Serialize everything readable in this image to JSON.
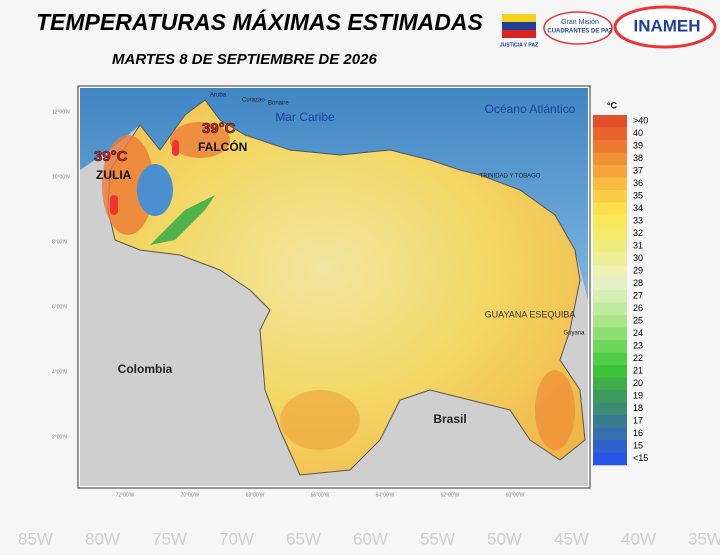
{
  "header": {
    "title": "TEMPERATURAS MÁXIMAS ESTIMADAS",
    "subtitle": "MARTES 8 DE SEPTIEMBRE DE 2026"
  },
  "logos": {
    "flag_caption": "JUSTICIA Y PAZ",
    "mission_line1": "Gran Misión",
    "mission_line2": "CUADRANTES DE PAZ",
    "inameh": "INAMEH"
  },
  "map": {
    "labels": {
      "sea": "Mar Caribe",
      "ocean": "Océano Atlántico",
      "colombia": "Colombia",
      "brasil": "Brasil",
      "esequiba": "GUAYANA ESEQUIBA",
      "trinidad": "TRINIDAD Y TOBAGO",
      "guyana": "Guyana",
      "aruba": "Aruba",
      "curazao": "Curazao",
      "bonaire": "Bonaire"
    },
    "highlights": [
      {
        "temp": "39°C",
        "state": "ZULIA"
      },
      {
        "temp": "39°C",
        "state": "FALCÓN"
      }
    ],
    "lat_labels": [
      "12°00'N",
      "10°00'N",
      "8°00'N",
      "6°00'N",
      "4°00'N",
      "2°00'N"
    ],
    "lon_labels": [
      "72°00'W",
      "70°00'W",
      "68°00'W",
      "66°00'W",
      "64°00'W",
      "62°00'W",
      "60°00'W"
    ]
  },
  "legend": {
    "unit": "°C",
    "items": [
      {
        "label": ">40",
        "color": "#e0502a"
      },
      {
        "label": "40",
        "color": "#e8662e"
      },
      {
        "label": "39",
        "color": "#ee7a32"
      },
      {
        "label": "38",
        "color": "#f29036"
      },
      {
        "label": "37",
        "color": "#f5a53a"
      },
      {
        "label": "36",
        "color": "#f8ba3f"
      },
      {
        "label": "35",
        "color": "#fbce45"
      },
      {
        "label": "34",
        "color": "#fde04c"
      },
      {
        "label": "33",
        "color": "#f8e85a"
      },
      {
        "label": "32",
        "color": "#f3ea6a"
      },
      {
        "label": "31",
        "color": "#efec7e"
      },
      {
        "label": "30",
        "color": "#ecee98"
      },
      {
        "label": "29",
        "color": "#eff0b4"
      },
      {
        "label": "28",
        "color": "#e6f0c6"
      },
      {
        "label": "27",
        "color": "#d6eeb6"
      },
      {
        "label": "26",
        "color": "#c0ea9e"
      },
      {
        "label": "25",
        "color": "#a8e588"
      },
      {
        "label": "24",
        "color": "#8cdf70"
      },
      {
        "label": "23",
        "color": "#6ed75a"
      },
      {
        "label": "22",
        "color": "#52ce46"
      },
      {
        "label": "21",
        "color": "#3ec23a"
      },
      {
        "label": "20",
        "color": "#40ad4a"
      },
      {
        "label": "19",
        "color": "#3e9b5e"
      },
      {
        "label": "18",
        "color": "#3c8b74"
      },
      {
        "label": "17",
        "color": "#397c90"
      },
      {
        "label": "16",
        "color": "#366eae"
      },
      {
        "label": "15",
        "color": "#2f60cc"
      },
      {
        "label": "<15",
        "color": "#2755e8"
      }
    ]
  },
  "background_lon": [
    "85W",
    "80W",
    "75W",
    "70W",
    "65W",
    "60W",
    "55W",
    "50W",
    "45W",
    "40W",
    "35W"
  ]
}
